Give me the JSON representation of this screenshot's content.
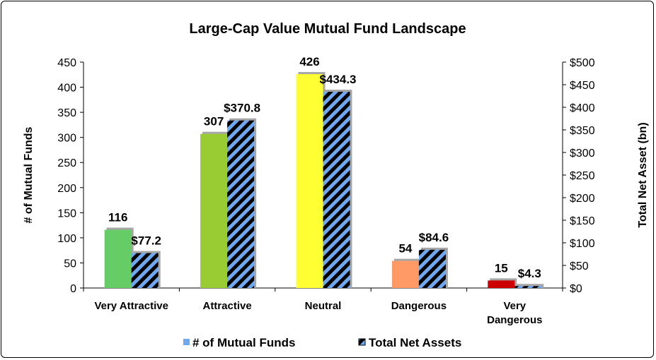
{
  "chart_data": {
    "type": "bar",
    "title": "Large-Cap Value Mutual Fund Landscape",
    "ylabel_left": "# of Mutual Funds",
    "ylabel_right": "Total Net Asset (bn)",
    "categories": [
      [
        "Very Attractive"
      ],
      [
        "Attractive"
      ],
      [
        "Neutral"
      ],
      [
        "Dangerous"
      ],
      [
        "Very",
        "Dangerous"
      ]
    ],
    "series": [
      {
        "name": "# of Mutual Funds",
        "axis": "left",
        "values": [
          116,
          307,
          426,
          54,
          15
        ],
        "labels": [
          "116",
          "307",
          "426",
          "54",
          "15"
        ],
        "colors": [
          "#66cc66",
          "#99cc33",
          "#ffff33",
          "#ff9966",
          "#cc0000"
        ]
      },
      {
        "name": "Total Net Assets",
        "axis": "right",
        "values": [
          77.2,
          370.8,
          434.3,
          84.6,
          4.3
        ],
        "labels": [
          "$77.2",
          "$370.8",
          "$434.3",
          "$84.6",
          "$4.3"
        ],
        "pattern": "diagonal-stripes",
        "colors": [
          "#6fa8f0",
          "#000000"
        ]
      }
    ],
    "ylim_left": [
      0,
      450
    ],
    "yticks_left": [
      "0",
      "50",
      "100",
      "150",
      "200",
      "250",
      "300",
      "350",
      "400",
      "450"
    ],
    "ylim_right": [
      0,
      500
    ],
    "yticks_right": [
      "$0",
      "$50",
      "$100",
      "$150",
      "$200",
      "$250",
      "$300",
      "$350",
      "$400",
      "$450",
      "$500"
    ],
    "grid": false,
    "legend_position": "bottom",
    "legend_colors": [
      "#6fa8f0",
      "#000000"
    ]
  }
}
